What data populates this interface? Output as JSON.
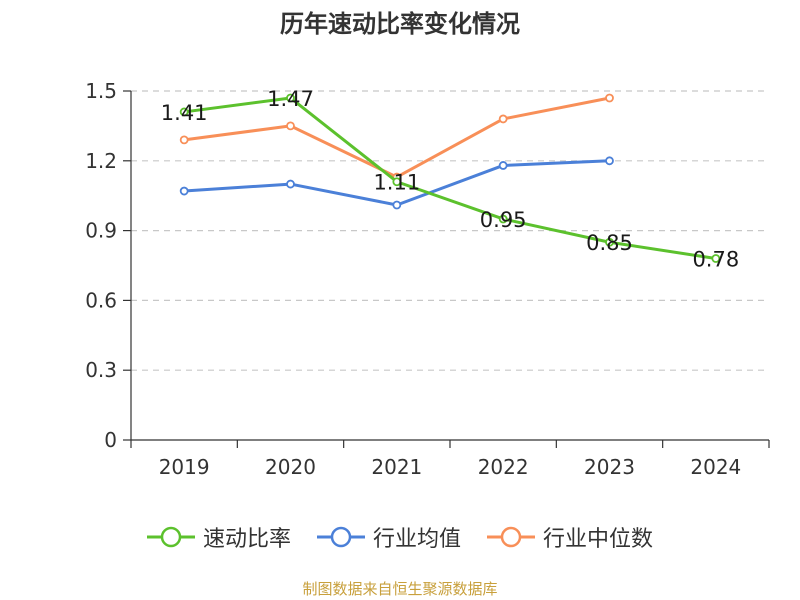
{
  "chart_data": {
    "type": "line",
    "title": "历年速动比率变化情况",
    "categories": [
      "2019",
      "2020",
      "2021",
      "2022",
      "2023",
      "2024"
    ],
    "y_ticks": [
      "0",
      "0.3",
      "0.6",
      "0.9",
      "1.2",
      "1.5"
    ],
    "ylim": [
      0,
      1.5
    ],
    "grid": true,
    "legend_position": "bottom",
    "series": [
      {
        "name": "速动比率",
        "color": "#5cc12d",
        "values": [
          1.41,
          1.47,
          1.11,
          0.95,
          0.85,
          0.78
        ],
        "labels": [
          "1.41",
          "1.47",
          "1.11",
          "0.95",
          "0.85",
          "0.78"
        ]
      },
      {
        "name": "行业均值",
        "color": "#4b80d8",
        "values": [
          1.07,
          1.1,
          1.01,
          1.18,
          1.2,
          null
        ]
      },
      {
        "name": "行业中位数",
        "color": "#f88f58",
        "values": [
          1.29,
          1.35,
          1.13,
          1.38,
          1.47,
          null
        ]
      }
    ]
  },
  "source_note": "制图数据来自恒生聚源数据库"
}
